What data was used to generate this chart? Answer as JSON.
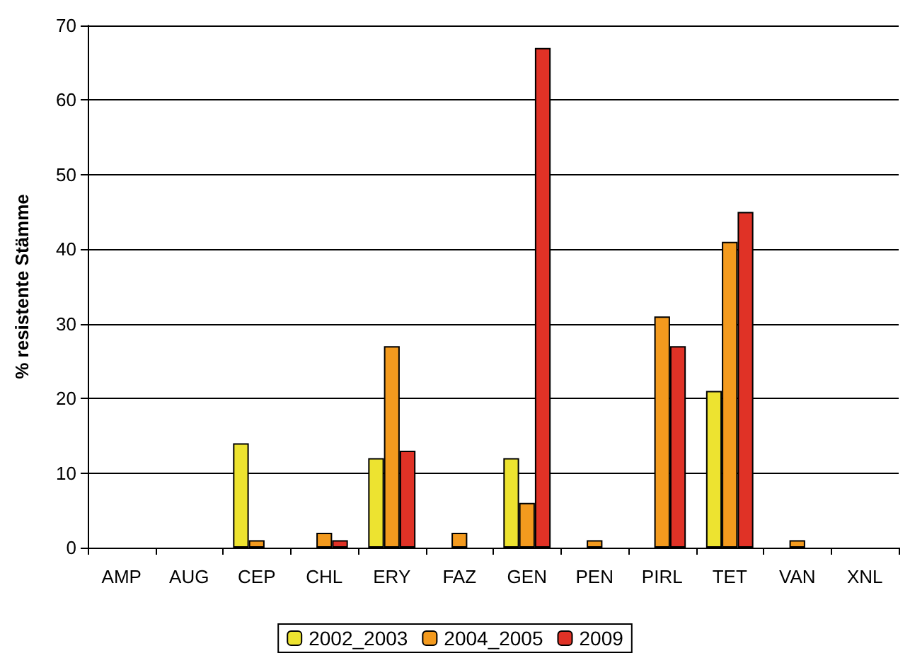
{
  "chart_data": {
    "type": "bar",
    "ylabel": "% resistente Stämme",
    "categories": [
      "AMP",
      "AUG",
      "CEP",
      "CHL",
      "ERY",
      "FAZ",
      "GEN",
      "PEN",
      "PIRL",
      "TET",
      "VAN",
      "XNL"
    ],
    "series": [
      {
        "name": "2002_2003",
        "color": "#ede330",
        "values": [
          0,
          0,
          14,
          0,
          12,
          0,
          12,
          0,
          0,
          21,
          0,
          0
        ]
      },
      {
        "name": "2004_2005",
        "color": "#f39a1e",
        "values": [
          0,
          0,
          1,
          2,
          27,
          2,
          6,
          1,
          31,
          41,
          1,
          0
        ]
      },
      {
        "name": "2009",
        "color": "#e03226",
        "values": [
          0,
          0,
          0,
          1,
          13,
          0,
          67,
          0,
          27,
          45,
          0,
          0
        ]
      }
    ],
    "ylim": [
      0,
      70
    ],
    "yticks": [
      0,
      10,
      20,
      30,
      40,
      50,
      60,
      70
    ],
    "grid": "y",
    "legend": "bottom"
  }
}
